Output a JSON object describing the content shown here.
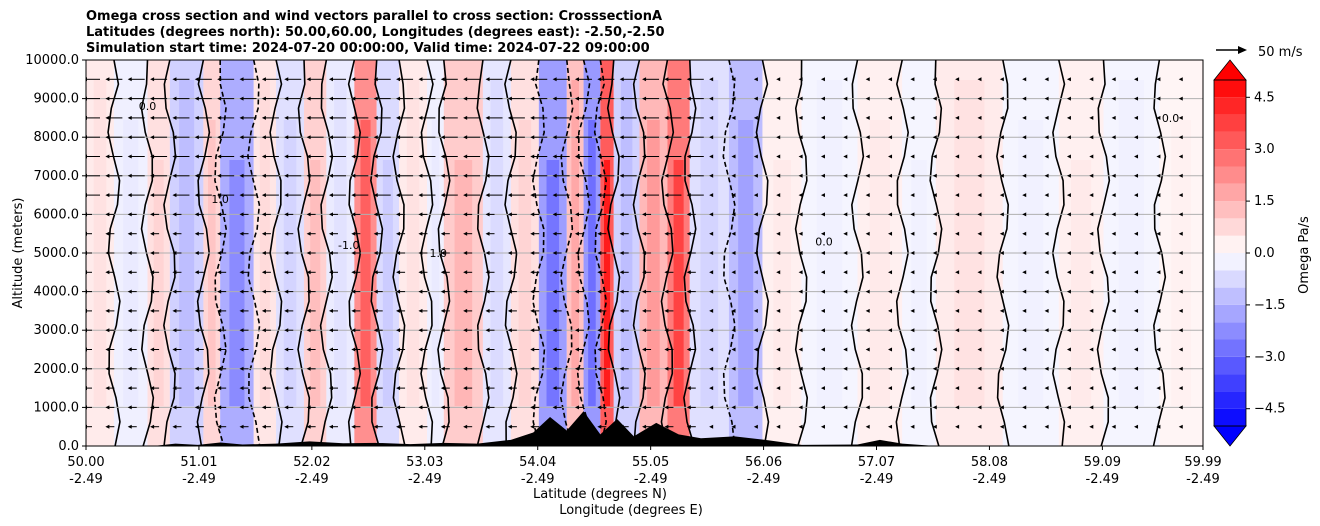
{
  "chart_data": {
    "type": "heatmap",
    "title_lines": [
      "Omega cross section and wind vectors parallel to cross section: CrosssectionA",
      "Latitudes (degrees north): 50.00,60.00, Longitudes (degrees east): -2.50,-2.50",
      "Simulation start time: 2024-07-20 00:00:00, Valid time: 2024-07-22 09:00:00"
    ],
    "xlabel_line1": "Latitude (degrees N)",
    "xlabel_line2": "Longitude (degrees E)",
    "ylabel": "Altitude (meters)",
    "xlim": [
      50.0,
      59.99
    ],
    "ylim": [
      0,
      10000
    ],
    "x_ticks": [
      {
        "lat": "50.00",
        "lon": "-2.49",
        "value": 50.0
      },
      {
        "lat": "51.01",
        "lon": "-2.49",
        "value": 51.01
      },
      {
        "lat": "52.02",
        "lon": "-2.49",
        "value": 52.02
      },
      {
        "lat": "53.03",
        "lon": "-2.49",
        "value": 53.03
      },
      {
        "lat": "54.04",
        "lon": "-2.49",
        "value": 54.04
      },
      {
        "lat": "55.05",
        "lon": "-2.49",
        "value": 55.05
      },
      {
        "lat": "56.06",
        "lon": "-2.49",
        "value": 56.06
      },
      {
        "lat": "57.07",
        "lon": "-2.49",
        "value": 57.07
      },
      {
        "lat": "58.08",
        "lon": "-2.49",
        "value": 58.08
      },
      {
        "lat": "59.09",
        "lon": "-2.49",
        "value": 59.09
      },
      {
        "lat": "59.99",
        "lon": "-2.49",
        "value": 59.99
      }
    ],
    "y_ticks": [
      {
        "label": "0.0",
        "value": 0
      },
      {
        "label": "1000.0",
        "value": 1000
      },
      {
        "label": "2000.0",
        "value": 2000
      },
      {
        "label": "3000.0",
        "value": 3000
      },
      {
        "label": "4000.0",
        "value": 4000
      },
      {
        "label": "5000.0",
        "value": 5000
      },
      {
        "label": "6000.0",
        "value": 6000
      },
      {
        "label": "7000.0",
        "value": 7000
      },
      {
        "label": "8000.0",
        "value": 8000
      },
      {
        "label": "9000.0",
        "value": 9000
      },
      {
        "label": "10000.0",
        "value": 10000
      }
    ],
    "grid": true,
    "colorbar": {
      "label": "Omega Pa/s",
      "range": [
        -5,
        5
      ],
      "ticks": [
        {
          "label": "4.5",
          "value": 4.5
        },
        {
          "label": "3.0",
          "value": 3.0
        },
        {
          "label": "1.5",
          "value": 1.5
        },
        {
          "label": "0.0",
          "value": 0.0
        },
        {
          "label": "−1.5",
          "value": -1.5
        },
        {
          "label": "−3.0",
          "value": -3.0
        },
        {
          "label": "−4.5",
          "value": -4.5
        }
      ],
      "colormap": "bwr",
      "extend": "both"
    },
    "quiver_key": {
      "label": "50 m/s",
      "value": 50
    },
    "contour_labels": [
      "0.0",
      "1.0",
      "-1.0",
      "1.0",
      "0.0"
    ],
    "bands": [
      {
        "x0": 50.0,
        "x1": 50.25,
        "v": 0.4
      },
      {
        "x0": 50.25,
        "x1": 50.55,
        "v": -0.3
      },
      {
        "x0": 50.55,
        "x1": 50.75,
        "v": 0.6
      },
      {
        "x0": 50.75,
        "x1": 51.05,
        "v": -0.9
      },
      {
        "x0": 51.05,
        "x1": 51.2,
        "v": 0.8
      },
      {
        "x0": 51.2,
        "x1": 51.5,
        "v": -1.6
      },
      {
        "x0": 51.5,
        "x1": 51.7,
        "v": 0.5
      },
      {
        "x0": 51.7,
        "x1": 51.95,
        "v": -0.6
      },
      {
        "x0": 51.95,
        "x1": 52.15,
        "v": 0.9
      },
      {
        "x0": 52.15,
        "x1": 52.4,
        "v": -0.4
      },
      {
        "x0": 52.4,
        "x1": 52.6,
        "v": 2.2
      },
      {
        "x0": 52.6,
        "x1": 52.8,
        "v": -0.7
      },
      {
        "x0": 52.8,
        "x1": 53.05,
        "v": 0.4
      },
      {
        "x0": 53.05,
        "x1": 53.2,
        "v": -0.3
      },
      {
        "x0": 53.2,
        "x1": 53.55,
        "v": 1.0
      },
      {
        "x0": 53.55,
        "x1": 53.8,
        "v": -0.5
      },
      {
        "x0": 53.8,
        "x1": 54.05,
        "v": 0.6
      },
      {
        "x0": 54.05,
        "x1": 54.3,
        "v": -1.9
      },
      {
        "x0": 54.3,
        "x1": 54.45,
        "v": 1.2
      },
      {
        "x0": 54.45,
        "x1": 54.6,
        "v": -2.0
      },
      {
        "x0": 54.6,
        "x1": 54.72,
        "v": 3.2
      },
      {
        "x0": 54.72,
        "x1": 54.95,
        "v": -0.9
      },
      {
        "x0": 54.95,
        "x1": 55.2,
        "v": 1.4
      },
      {
        "x0": 55.2,
        "x1": 55.4,
        "v": 2.6
      },
      {
        "x0": 55.4,
        "x1": 55.75,
        "v": -0.6
      },
      {
        "x0": 55.75,
        "x1": 56.05,
        "v": -1.3
      },
      {
        "x0": 56.05,
        "x1": 56.4,
        "v": 0.3
      },
      {
        "x0": 56.4,
        "x1": 56.9,
        "v": -0.2
      },
      {
        "x0": 56.9,
        "x1": 57.3,
        "v": 0.3
      },
      {
        "x0": 57.3,
        "x1": 57.6,
        "v": -0.2
      },
      {
        "x0": 57.6,
        "x1": 58.2,
        "v": 0.4
      },
      {
        "x0": 58.2,
        "x1": 58.7,
        "v": -0.2
      },
      {
        "x0": 58.7,
        "x1": 59.1,
        "v": 0.3
      },
      {
        "x0": 59.1,
        "x1": 59.6,
        "v": -0.2
      },
      {
        "x0": 59.6,
        "x1": 59.99,
        "v": 0.2
      }
    ],
    "terrain": [
      [
        50.0,
        0
      ],
      [
        50.6,
        0
      ],
      [
        50.8,
        60
      ],
      [
        51.0,
        30
      ],
      [
        51.2,
        90
      ],
      [
        51.4,
        40
      ],
      [
        51.7,
        60
      ],
      [
        52.0,
        120
      ],
      [
        52.3,
        70
      ],
      [
        52.6,
        80
      ],
      [
        52.9,
        50
      ],
      [
        53.2,
        80
      ],
      [
        53.5,
        60
      ],
      [
        53.8,
        160
      ],
      [
        54.0,
        350
      ],
      [
        54.15,
        750
      ],
      [
        54.3,
        400
      ],
      [
        54.45,
        900
      ],
      [
        54.6,
        300
      ],
      [
        54.75,
        700
      ],
      [
        54.9,
        250
      ],
      [
        55.1,
        600
      ],
      [
        55.3,
        300
      ],
      [
        55.5,
        200
      ],
      [
        55.8,
        250
      ],
      [
        56.1,
        150
      ],
      [
        56.4,
        30
      ],
      [
        56.9,
        40
      ],
      [
        57.1,
        160
      ],
      [
        57.3,
        60
      ],
      [
        57.6,
        0
      ],
      [
        59.99,
        0
      ]
    ]
  }
}
